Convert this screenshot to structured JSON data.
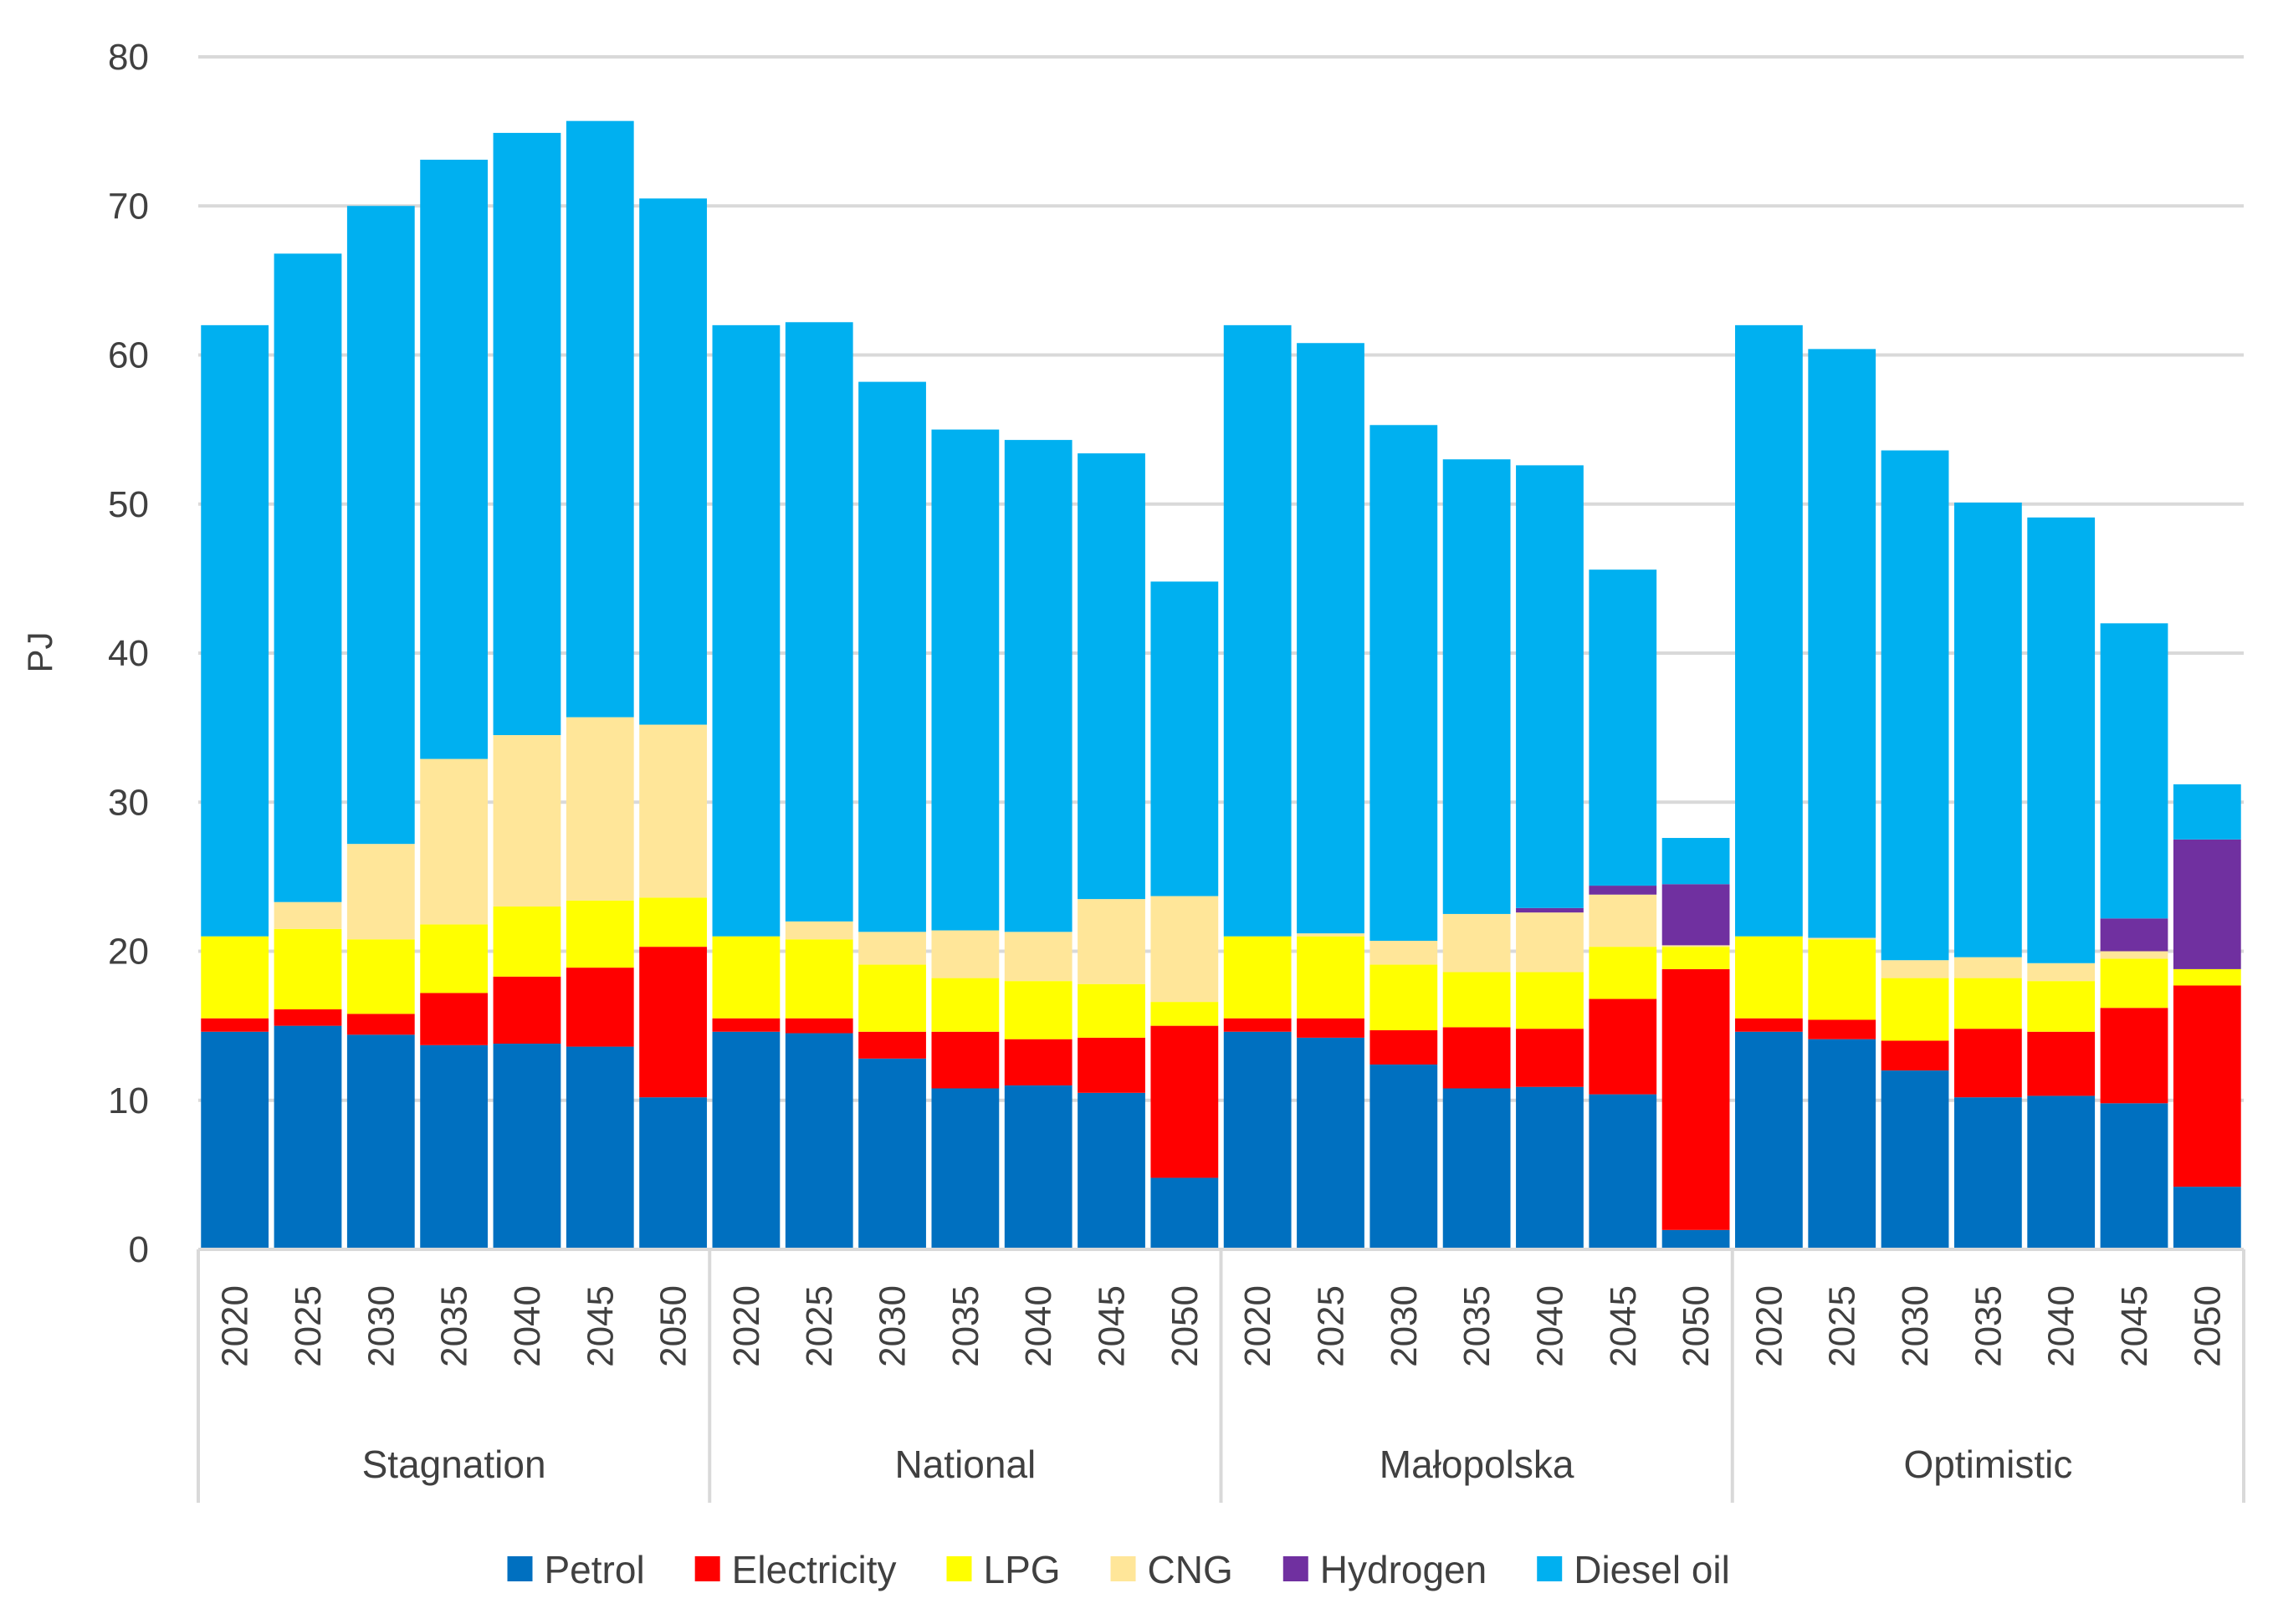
{
  "chart_data": {
    "type": "bar",
    "stacked": true,
    "title": "",
    "xlabel": "",
    "ylabel": "PJ",
    "ylim": [
      0,
      80
    ],
    "yticks": [
      0,
      10,
      20,
      30,
      40,
      50,
      60,
      70,
      80
    ],
    "grid": true,
    "legend_position": "bottom",
    "groups": [
      {
        "name": "Stagnation",
        "years": [
          "2020",
          "2025",
          "2030",
          "2035",
          "2040",
          "2045",
          "2050"
        ]
      },
      {
        "name": "National",
        "years": [
          "2020",
          "2025",
          "2030",
          "2035",
          "2040",
          "2045",
          "2050"
        ]
      },
      {
        "name": "Małopolska",
        "years": [
          "2020",
          "2025",
          "2030",
          "2035",
          "2040",
          "2045",
          "2050"
        ]
      },
      {
        "name": "Optimistic",
        "years": [
          "2020",
          "2025",
          "2030",
          "2035",
          "2040",
          "2045",
          "2050"
        ]
      }
    ],
    "series": [
      {
        "name": "Petrol",
        "color": "#0070C0",
        "values": [
          14.6,
          15.0,
          14.4,
          13.7,
          13.8,
          13.6,
          10.2,
          14.6,
          14.5,
          12.8,
          10.8,
          11.0,
          10.5,
          4.8,
          14.6,
          14.2,
          12.4,
          10.8,
          10.9,
          10.4,
          1.3,
          14.6,
          14.1,
          12.0,
          10.2,
          10.3,
          9.8,
          4.2
        ]
      },
      {
        "name": "Electricity",
        "color": "#FF0000",
        "values": [
          0.9,
          1.1,
          1.4,
          3.5,
          4.5,
          5.3,
          10.1,
          0.9,
          1.0,
          1.8,
          3.8,
          3.1,
          3.7,
          10.2,
          0.9,
          1.3,
          2.3,
          4.1,
          3.9,
          6.4,
          17.5,
          0.9,
          1.3,
          2.0,
          4.6,
          4.3,
          6.4,
          13.5
        ]
      },
      {
        "name": "LPG",
        "color": "#FFFF00",
        "values": [
          5.5,
          5.4,
          5.0,
          4.6,
          4.7,
          4.5,
          3.3,
          5.5,
          5.3,
          4.5,
          3.6,
          3.9,
          3.6,
          1.6,
          5.5,
          5.5,
          4.4,
          3.7,
          3.8,
          3.5,
          1.5,
          5.5,
          5.4,
          4.2,
          3.4,
          3.4,
          3.3,
          1.1
        ]
      },
      {
        "name": "CNG",
        "color": "#FFE699",
        "values": [
          0,
          1.8,
          6.4,
          11.1,
          11.5,
          12.3,
          11.6,
          0,
          1.2,
          2.2,
          3.2,
          3.3,
          5.7,
          7.1,
          0,
          0.2,
          1.6,
          3.9,
          4.0,
          3.5,
          0.1,
          0,
          0.1,
          1.2,
          1.4,
          1.2,
          0.5,
          0
        ]
      },
      {
        "name": "Hydrogen",
        "color": "#7030A0",
        "values": [
          0,
          0,
          0,
          0,
          0,
          0,
          0,
          0,
          0,
          0,
          0,
          0,
          0,
          0,
          0,
          0,
          0,
          0,
          0.3,
          0.6,
          4.1,
          0,
          0,
          0,
          0,
          0,
          2.2,
          8.7
        ]
      },
      {
        "name": "Diesel oil",
        "color": "#00B0F0",
        "values": [
          41.0,
          43.5,
          42.8,
          40.2,
          40.4,
          40.0,
          35.3,
          41.0,
          40.2,
          36.9,
          33.6,
          33.0,
          29.9,
          21.1,
          41.0,
          39.6,
          34.6,
          30.5,
          29.7,
          21.2,
          3.1,
          41.0,
          39.5,
          34.2,
          30.5,
          29.9,
          19.8,
          3.7
        ]
      }
    ]
  }
}
